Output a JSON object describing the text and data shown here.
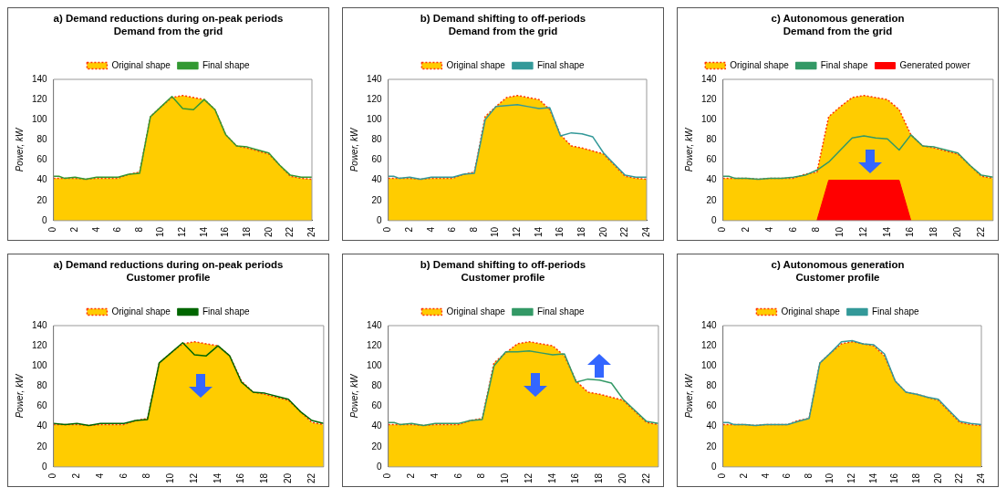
{
  "chart_data": [
    {
      "type": "area",
      "title": "a) Demand reductions during on-peak periods",
      "subtitle": "Demand from the grid",
      "ylabel": "Power, kW",
      "xlim": [
        0,
        24
      ],
      "xticks": [
        0,
        2,
        4,
        6,
        8,
        10,
        12,
        14,
        16,
        18,
        20,
        22,
        24
      ],
      "ylim": [
        0,
        140
      ],
      "yticks": [
        0,
        20,
        40,
        60,
        80,
        100,
        120,
        140
      ],
      "legend": "top",
      "series": [
        {
          "name": "Original shape",
          "type": "area",
          "color": "#ffcc00",
          "line_style": "dotted",
          "x": [
            0,
            1,
            2,
            3,
            4,
            5,
            6,
            7,
            8,
            9,
            10,
            11,
            12,
            13,
            14,
            15,
            16,
            17,
            18,
            19,
            20,
            21,
            22,
            23,
            24
          ],
          "values": [
            42,
            42,
            42,
            41,
            42,
            42,
            42,
            46,
            48,
            103,
            113,
            122,
            124,
            122,
            120,
            110,
            85,
            74,
            72,
            69,
            66,
            55,
            44,
            42,
            41
          ]
        },
        {
          "name": "Final shape",
          "type": "line",
          "color": "#339933",
          "line_style": "solid",
          "x": [
            0,
            0.5,
            1,
            2,
            3,
            4,
            5,
            6,
            7,
            8,
            9,
            10,
            11,
            12,
            13,
            14,
            15,
            16,
            17,
            18,
            19,
            20,
            21,
            22,
            23,
            24
          ],
          "values": [
            44,
            44,
            42,
            43,
            41,
            43,
            43,
            43,
            46,
            47,
            103,
            113,
            123,
            111,
            110,
            120,
            110,
            85,
            74,
            73,
            70,
            67,
            55,
            45,
            43,
            43
          ]
        }
      ]
    },
    {
      "type": "area",
      "title": "b) Demand shifting to off-periods",
      "subtitle": "Demand from the grid",
      "ylabel": "Power, kW",
      "xlim": [
        0,
        24
      ],
      "xticks": [
        0,
        2,
        4,
        6,
        8,
        10,
        12,
        14,
        16,
        18,
        20,
        22,
        24
      ],
      "ylim": [
        0,
        140
      ],
      "yticks": [
        0,
        20,
        40,
        60,
        80,
        100,
        120,
        140
      ],
      "legend": "top",
      "series": [
        {
          "name": "Original shape",
          "type": "area",
          "color": "#ffcc00",
          "line_style": "dotted",
          "x": [
            0,
            1,
            2,
            3,
            4,
            5,
            6,
            7,
            8,
            9,
            10,
            11,
            12,
            13,
            14,
            15,
            16,
            17,
            18,
            19,
            20,
            21,
            22,
            23,
            24
          ],
          "values": [
            42,
            42,
            42,
            41,
            42,
            42,
            42,
            46,
            48,
            103,
            113,
            122,
            124,
            122,
            120,
            110,
            85,
            74,
            72,
            69,
            66,
            55,
            44,
            42,
            41
          ]
        },
        {
          "name": "Final shape",
          "type": "line",
          "color": "#339999",
          "line_style": "solid",
          "x": [
            0,
            0.5,
            1,
            2,
            3,
            4,
            5,
            6,
            7,
            8,
            9,
            10,
            11,
            12,
            13,
            14,
            15,
            16,
            17,
            18,
            19,
            20,
            21,
            22,
            23,
            24
          ],
          "values": [
            44,
            44,
            42,
            43,
            41,
            43,
            43,
            43,
            46,
            47,
            100,
            113,
            114,
            115,
            113,
            111,
            112,
            84,
            87,
            86,
            83,
            67,
            56,
            45,
            43,
            43
          ]
        }
      ]
    },
    {
      "type": "area",
      "title": "c) Autonomous generation",
      "subtitle": "Demand from the grid",
      "ylabel": "Power, kW",
      "xlim": [
        0,
        23
      ],
      "xticks": [
        0,
        2,
        4,
        6,
        8,
        10,
        12,
        14,
        16,
        18,
        20,
        22
      ],
      "ylim": [
        0,
        140
      ],
      "yticks": [
        0,
        20,
        40,
        60,
        80,
        100,
        120,
        140
      ],
      "legend": "top",
      "series": [
        {
          "name": "Original shape",
          "type": "area",
          "color": "#ffcc00",
          "line_style": "dotted",
          "x": [
            0,
            1,
            2,
            3,
            4,
            5,
            6,
            7,
            8,
            9,
            10,
            11,
            12,
            13,
            14,
            15,
            16,
            17,
            18,
            19,
            20,
            21,
            22,
            23
          ],
          "values": [
            42,
            42,
            42,
            41,
            42,
            42,
            42,
            46,
            48,
            103,
            113,
            122,
            124,
            122,
            120,
            110,
            85,
            74,
            72,
            69,
            66,
            55,
            44,
            42
          ]
        },
        {
          "name": "Final shape",
          "type": "line",
          "color": "#339966",
          "line_style": "solid",
          "x": [
            0,
            0.5,
            1,
            2,
            3,
            4,
            5,
            6,
            7,
            8,
            9,
            10,
            11,
            12,
            13,
            14,
            15,
            16,
            17,
            18,
            19,
            20,
            21,
            22,
            23
          ],
          "values": [
            44,
            44,
            42,
            42,
            41,
            42,
            42,
            43,
            45,
            50,
            58,
            70,
            82,
            84,
            82,
            81,
            70,
            85,
            74,
            73,
            70,
            67,
            55,
            45,
            43
          ]
        },
        {
          "name": "Generated power",
          "type": "area",
          "color": "#ff0000",
          "line_style": "solid",
          "x": [
            8,
            9,
            15,
            16
          ],
          "values": [
            0,
            40,
            40,
            0
          ]
        }
      ]
    },
    {
      "type": "area",
      "title": "a) Demand reductions during on-peak periods",
      "subtitle": "Customer profile",
      "ylabel": "Power, kW",
      "xlim": [
        0,
        23
      ],
      "xticks": [
        0,
        2,
        4,
        6,
        8,
        10,
        12,
        14,
        16,
        18,
        20,
        22
      ],
      "ylim": [
        0,
        140
      ],
      "yticks": [
        0,
        20,
        40,
        60,
        80,
        100,
        120,
        140
      ],
      "legend": "top",
      "series": [
        {
          "name": "Original shape",
          "type": "area",
          "color": "#ffcc00",
          "line_style": "dotted",
          "x": [
            0,
            1,
            2,
            3,
            4,
            5,
            6,
            7,
            8,
            9,
            10,
            11,
            12,
            13,
            14,
            15,
            16,
            17,
            18,
            19,
            20,
            21,
            22,
            23
          ],
          "values": [
            42,
            42,
            42,
            41,
            42,
            42,
            42,
            46,
            48,
            103,
            113,
            122,
            124,
            122,
            120,
            110,
            85,
            74,
            72,
            69,
            66,
            55,
            44,
            42
          ]
        },
        {
          "name": "Final shape",
          "type": "line",
          "color": "#006600",
          "line_style": "solid",
          "x": [
            0,
            1,
            2,
            3,
            4,
            5,
            6,
            7,
            8,
            9,
            10,
            11,
            12,
            13,
            14,
            15,
            16,
            17,
            18,
            19,
            20,
            21,
            22,
            23
          ],
          "values": [
            43,
            42,
            43,
            41,
            43,
            43,
            43,
            46,
            47,
            103,
            113,
            123,
            111,
            110,
            120,
            110,
            84,
            74,
            73,
            70,
            67,
            55,
            46,
            43
          ]
        }
      ]
    },
    {
      "type": "area",
      "title": "b) Demand shifting to off-periods",
      "subtitle": "Customer profile",
      "ylabel": "Power, kW",
      "xlim": [
        0,
        23
      ],
      "xticks": [
        0,
        2,
        4,
        6,
        8,
        10,
        12,
        14,
        16,
        18,
        20,
        22
      ],
      "ylim": [
        0,
        140
      ],
      "yticks": [
        0,
        20,
        40,
        60,
        80,
        100,
        120,
        140
      ],
      "legend": "top",
      "series": [
        {
          "name": "Original shape",
          "type": "area",
          "color": "#ffcc00",
          "line_style": "dotted",
          "x": [
            0,
            1,
            2,
            3,
            4,
            5,
            6,
            7,
            8,
            9,
            10,
            11,
            12,
            13,
            14,
            15,
            16,
            17,
            18,
            19,
            20,
            21,
            22,
            23
          ],
          "values": [
            42,
            42,
            42,
            41,
            42,
            42,
            42,
            46,
            48,
            103,
            113,
            122,
            124,
            122,
            120,
            110,
            85,
            74,
            72,
            69,
            66,
            55,
            44,
            42
          ]
        },
        {
          "name": "Final shape",
          "type": "line",
          "color": "#339966",
          "line_style": "solid",
          "x": [
            0,
            0.5,
            1,
            2,
            3,
            4,
            5,
            6,
            7,
            8,
            9,
            10,
            11,
            12,
            13,
            14,
            15,
            16,
            17,
            18,
            19,
            20,
            21,
            22,
            23
          ],
          "values": [
            44,
            44,
            42,
            43,
            41,
            43,
            43,
            43,
            46,
            47,
            100,
            114,
            114,
            115,
            113,
            111,
            112,
            84,
            87,
            86,
            83,
            67,
            56,
            45,
            43
          ]
        }
      ]
    },
    {
      "type": "area",
      "title": "c) Autonomous generation",
      "subtitle": "Customer profile",
      "ylabel": "Power, kW",
      "xlim": [
        0,
        24
      ],
      "xticks": [
        0,
        2,
        4,
        6,
        8,
        10,
        12,
        14,
        16,
        18,
        20,
        22,
        24
      ],
      "ylim": [
        0,
        140
      ],
      "yticks": [
        0,
        20,
        40,
        60,
        80,
        100,
        120,
        140
      ],
      "legend": "top",
      "series": [
        {
          "name": "Original shape",
          "type": "area",
          "color": "#ffcc00",
          "line_style": "dotted",
          "x": [
            0,
            1,
            2,
            3,
            4,
            5,
            6,
            7,
            8,
            9,
            10,
            11,
            12,
            13,
            14,
            15,
            16,
            17,
            18,
            19,
            20,
            21,
            22,
            23,
            24
          ],
          "values": [
            42,
            42,
            42,
            41,
            42,
            42,
            42,
            46,
            48,
            103,
            113,
            122,
            124,
            122,
            120,
            110,
            85,
            74,
            72,
            69,
            66,
            55,
            44,
            42,
            41
          ]
        },
        {
          "name": "Final shape",
          "type": "line",
          "color": "#339999",
          "line_style": "solid",
          "x": [
            0,
            0.5,
            1,
            2,
            3,
            4,
            5,
            6,
            7,
            8,
            9,
            10,
            11,
            12,
            13,
            14,
            15,
            16,
            17,
            18,
            19,
            20,
            21,
            22,
            23,
            24
          ],
          "values": [
            44,
            44,
            42,
            42,
            41,
            42,
            42,
            42,
            45,
            48,
            103,
            113,
            124,
            125,
            122,
            121,
            112,
            85,
            74,
            72,
            69,
            67,
            56,
            45,
            43,
            42
          ]
        }
      ]
    }
  ]
}
